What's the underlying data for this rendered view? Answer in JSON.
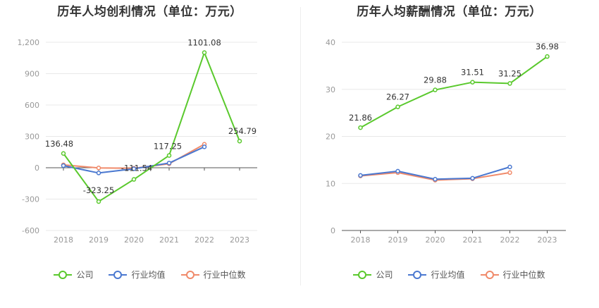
{
  "colors": {
    "company": "#5ac92d",
    "industry_avg": "#4a78d0",
    "industry_median": "#f08a6a"
  },
  "legend": [
    "公司",
    "行业均值",
    "行业中位数"
  ],
  "chart_data": [
    {
      "type": "line",
      "title": "历年人均创利情况（单位：万元）",
      "categories": [
        "2018",
        "2019",
        "2020",
        "2021",
        "2022",
        "2023"
      ],
      "y_ticks": [
        "1,200",
        "900",
        "600",
        "300",
        "0",
        "-300",
        "-600"
      ],
      "ylim": [
        -600,
        1200
      ],
      "series": [
        {
          "name": "公司",
          "values": [
            136.48,
            -323.25,
            -111.54,
            117.25,
            1101.08,
            254.79
          ],
          "labels": [
            "136.48",
            "-323.25",
            "-111.54",
            "117.25",
            "1101.08",
            "254.79"
          ]
        },
        {
          "name": "行业均值",
          "values": [
            20,
            -50,
            -10,
            45,
            200,
            null
          ]
        },
        {
          "name": "行业中位数",
          "values": [
            28,
            -2,
            -5,
            38,
            225,
            null
          ]
        }
      ],
      "grid": true,
      "legend_position": "bottom"
    },
    {
      "type": "line",
      "title": "历年人均薪酬情况（单位：万元）",
      "categories": [
        "2018",
        "2019",
        "2020",
        "2021",
        "2022",
        "2023"
      ],
      "y_ticks": [
        "40",
        "30",
        "20",
        "10",
        "0"
      ],
      "ylim": [
        0,
        40
      ],
      "series": [
        {
          "name": "公司",
          "values": [
            21.86,
            26.27,
            29.88,
            31.51,
            31.25,
            36.98
          ],
          "labels": [
            "21.86",
            "26.27",
            "29.88",
            "31.51",
            "31.25",
            "36.98"
          ]
        },
        {
          "name": "行业均值",
          "values": [
            11.7,
            12.6,
            10.9,
            11.1,
            13.5,
            null
          ]
        },
        {
          "name": "行业中位数",
          "values": [
            11.6,
            12.3,
            10.7,
            11.0,
            12.3,
            null
          ]
        }
      ],
      "grid": true,
      "legend_position": "bottom"
    }
  ]
}
